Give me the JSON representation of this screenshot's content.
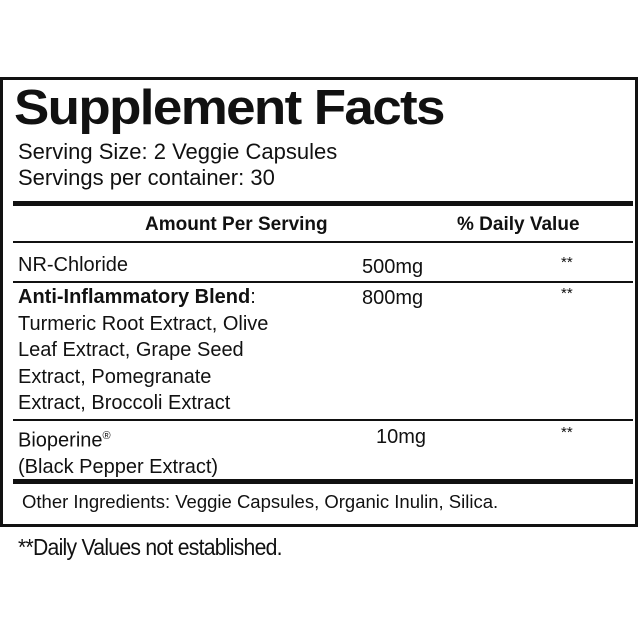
{
  "title": "Supplement Facts",
  "serving_size": "Serving Size: 2 Veggie Capsules",
  "servings_per_container": "Servings per container: 30",
  "header": {
    "amount": "Amount Per Serving",
    "daily_value": "% Daily Value"
  },
  "rows": [
    {
      "name": "NR-Chloride",
      "amount": "500mg",
      "dv": "**"
    },
    {
      "name": "Anti-Inflammatory Blend",
      "name_suffix": ":",
      "details": [
        "Turmeric Root Extract, Olive",
        "Leaf Extract, Grape Seed",
        "Extract, Pomegranate",
        "Extract, Broccoli Extract"
      ],
      "amount": "800mg",
      "dv": "**"
    },
    {
      "name": "Bioperine",
      "mark": "®",
      "details": [
        "(Black Pepper Extract)"
      ],
      "amount": "10mg",
      "dv": "**"
    }
  ],
  "other_ingredients": "Other Ingredients: Veggie Capsules, Organic Inulin, Silica.",
  "footnote": "**Daily Values not established."
}
